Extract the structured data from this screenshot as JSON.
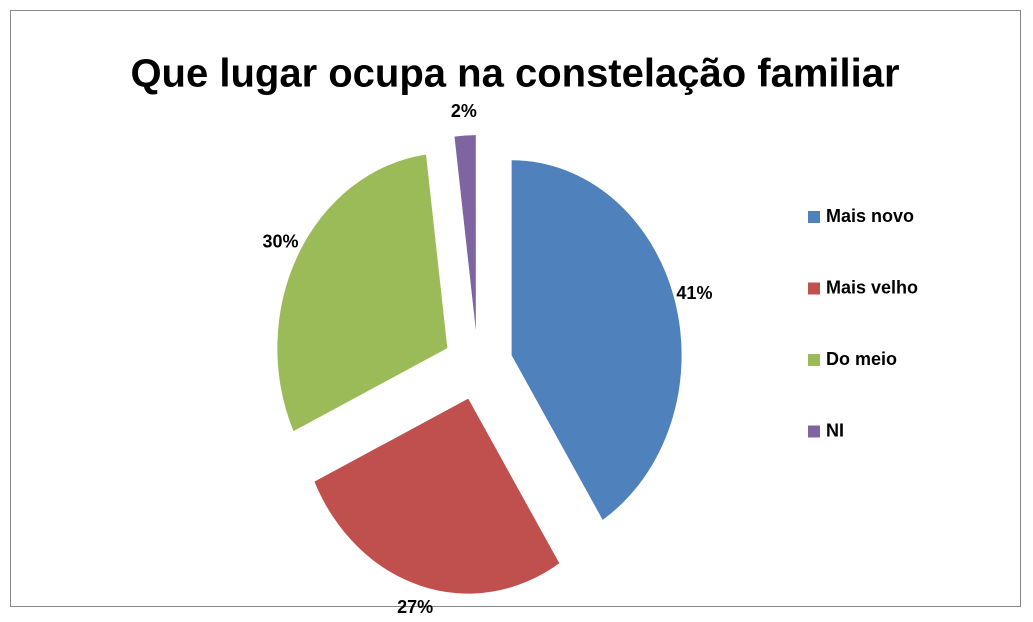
{
  "chart_data": {
    "type": "pie",
    "title": "Que lugar ocupa na constelação familiar",
    "categories": [
      "Mais novo",
      "Mais velho",
      "Do meio",
      "NI"
    ],
    "values": [
      41,
      27,
      30,
      2
    ],
    "value_labels": [
      "41%",
      "27%",
      "30%",
      "2%"
    ],
    "colors": [
      "#4f81bd",
      "#c0504d",
      "#9bbb59",
      "#8064a2"
    ],
    "exploded": true,
    "legend": "right"
  }
}
